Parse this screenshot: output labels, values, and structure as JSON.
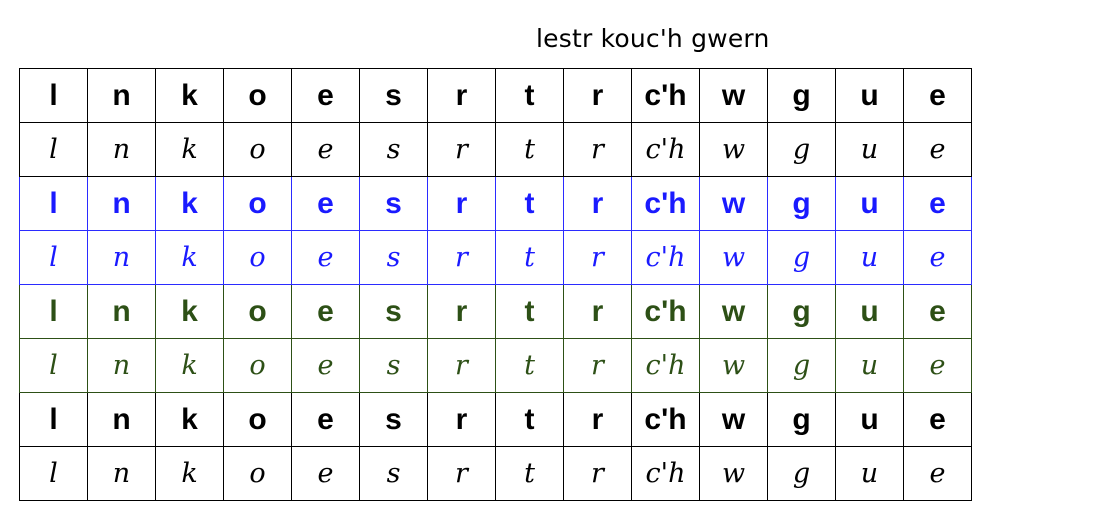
{
  "title": "lestr kouc'h gwern",
  "letters": [
    "l",
    "n",
    "k",
    "o",
    "e",
    "s",
    "r",
    "t",
    "r",
    "c'h",
    "w",
    "g",
    "u",
    "e"
  ],
  "rows": [
    {
      "style": "print",
      "color": "#000000"
    },
    {
      "style": "cursive",
      "color": "#000000"
    },
    {
      "style": "print",
      "color": "#1a1aff"
    },
    {
      "style": "cursive",
      "color": "#1a1aff"
    },
    {
      "style": "print",
      "color": "#2d5016"
    },
    {
      "style": "cursive",
      "color": "#2d5016"
    },
    {
      "style": "print",
      "color": "#000000"
    },
    {
      "style": "cursive",
      "color": "#000000"
    }
  ]
}
